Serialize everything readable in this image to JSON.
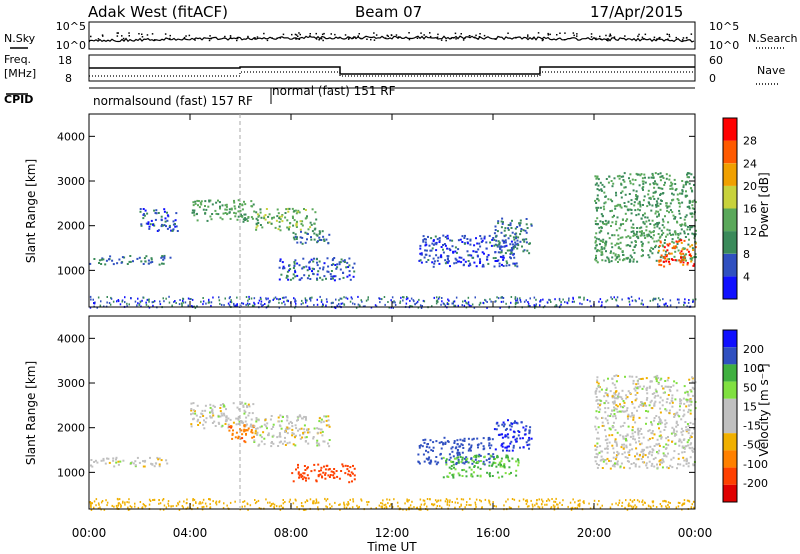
{
  "header": {
    "station": "Adak West (fitACF)",
    "beam": "Beam 07",
    "date": "17/Apr/2015"
  },
  "top_panels": {
    "nsky_label": "N.Sky",
    "nsky_ticks": [
      "10^5",
      "10^0"
    ],
    "nsearch_label": "N.Search",
    "nsearch_ticks": [
      "10^5",
      "10^0"
    ],
    "freq_label": "Freq.",
    "freq_unit": "[MHz]",
    "freq_ticks": [
      "18",
      "8"
    ],
    "nave_label": "Nave",
    "nave_ticks": [
      "60",
      "0"
    ],
    "cpid_label": "CPID",
    "cpid_segments": [
      {
        "label": "normalsound (fast) 157 RF",
        "start_h": 0,
        "end_h": 6
      },
      {
        "label": "normal (fast) 151 RF",
        "start_h": 6,
        "end_h": 24
      }
    ]
  },
  "colors": {
    "power": [
      "#1010ff",
      "#3050c0",
      "#3a8a5a",
      "#5aa85a",
      "#c8d23c",
      "#f0a000",
      "#ff5a00",
      "#ff0000"
    ],
    "velocity": [
      "#e00000",
      "#ff4000",
      "#ff8000",
      "#f0b000",
      "#c0c0c0",
      "#c0c0c0",
      "#80e040",
      "#40b040",
      "#3050c0",
      "#1010ff"
    ]
  },
  "chart_data": [
    {
      "type": "heatmap",
      "title": "",
      "xlabel": "",
      "ylabel": "Slant Range [km]",
      "xlim": [
        0,
        24
      ],
      "ylim": [
        180,
        4500
      ],
      "y_ticks": [
        "1000",
        "2000",
        "3000",
        "4000"
      ],
      "colorbar_label": "Power [dB]",
      "colorbar_ticks": [
        "4",
        "8",
        "12",
        "16",
        "20",
        "24",
        "28"
      ],
      "regions": [
        {
          "x": [
            0.0,
            3.2
          ],
          "y": [
            1150,
            1350
          ],
          "value": 8
        },
        {
          "x": [
            2.0,
            3.5
          ],
          "y": [
            1900,
            2400
          ],
          "value": 6
        },
        {
          "x": [
            4.0,
            6.5
          ],
          "y": [
            2100,
            2600
          ],
          "value": 12
        },
        {
          "x": [
            6.5,
            9.0
          ],
          "y": [
            1900,
            2400
          ],
          "value": 14
        },
        {
          "x": [
            8.0,
            9.5
          ],
          "y": [
            1600,
            1900
          ],
          "value": 8
        },
        {
          "x": [
            7.5,
            10.5
          ],
          "y": [
            800,
            1300
          ],
          "value": 6
        },
        {
          "x": [
            13.0,
            17.0
          ],
          "y": [
            1100,
            1800
          ],
          "value": 5
        },
        {
          "x": [
            16.0,
            17.5
          ],
          "y": [
            1400,
            2200
          ],
          "value": 8
        },
        {
          "x": [
            20.0,
            24.0
          ],
          "y": [
            1200,
            3200
          ],
          "value": 12
        },
        {
          "x": [
            22.5,
            24.0
          ],
          "y": [
            1100,
            1700
          ],
          "value": 26
        }
      ]
    },
    {
      "type": "heatmap",
      "title": "",
      "xlabel": "Time UT",
      "ylabel": "Slant Range [km]",
      "xlim": [
        0,
        24
      ],
      "ylim": [
        180,
        4500
      ],
      "x_ticks": [
        "00:00",
        "04:00",
        "08:00",
        "12:00",
        "16:00",
        "20:00",
        "00:00"
      ],
      "y_ticks": [
        "1000",
        "2000",
        "3000",
        "4000"
      ],
      "colorbar_label": "Velocity [m s⁻¹]",
      "colorbar_ticks": [
        "200",
        "100",
        "50",
        "15",
        "-15",
        "-50",
        "-100",
        "-200"
      ],
      "regions": [
        {
          "x": [
            0.0,
            3.2
          ],
          "y": [
            1150,
            1350
          ],
          "value": 0
        },
        {
          "x": [
            4.0,
            6.5
          ],
          "y": [
            2000,
            2600
          ],
          "value": 0
        },
        {
          "x": [
            5.5,
            6.5
          ],
          "y": [
            1700,
            2100
          ],
          "value": -60
        },
        {
          "x": [
            6.5,
            9.5
          ],
          "y": [
            1600,
            2300
          ],
          "value": 0
        },
        {
          "x": [
            8.0,
            10.5
          ],
          "y": [
            800,
            1200
          ],
          "value": -100
        },
        {
          "x": [
            13.0,
            16.0
          ],
          "y": [
            1200,
            1800
          ],
          "value": 120
        },
        {
          "x": [
            14.0,
            17.0
          ],
          "y": [
            900,
            1400
          ],
          "value": 40
        },
        {
          "x": [
            16.0,
            17.5
          ],
          "y": [
            1500,
            2200
          ],
          "value": 150
        },
        {
          "x": [
            20.0,
            24.0
          ],
          "y": [
            1100,
            3200
          ],
          "value": 0
        }
      ]
    }
  ]
}
